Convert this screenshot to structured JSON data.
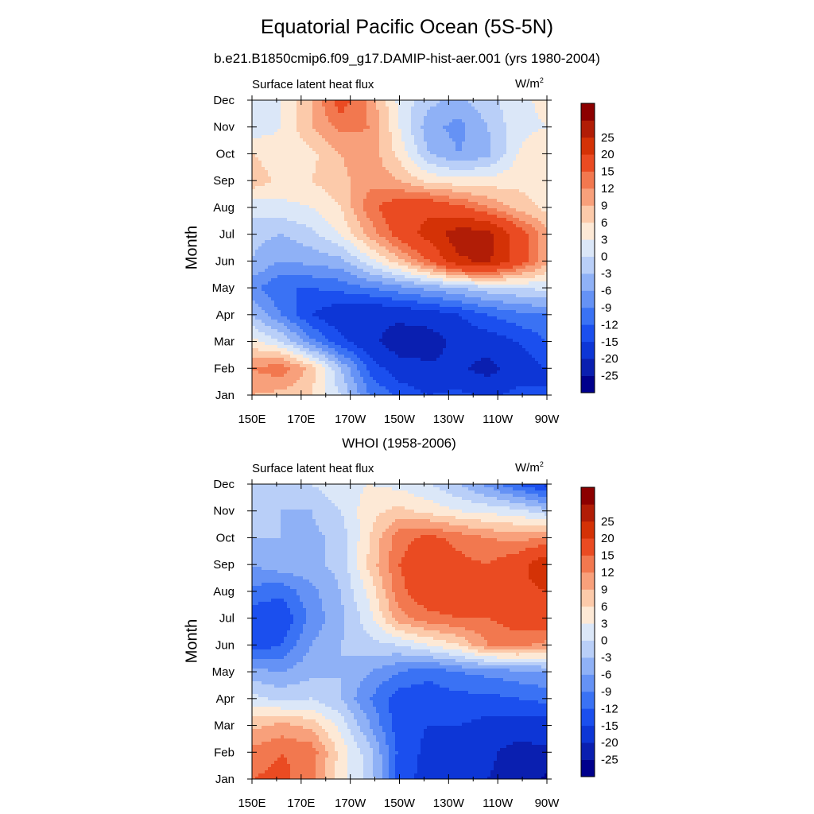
{
  "title": "Equatorial Pacific Ocean (5S-5N)",
  "subtitle": "b.e21.B1850cmip6.f09_g17.DAMIP-hist-aer.001 (yrs 1980-2004)",
  "panels": [
    {
      "panel_title": "",
      "var_label": "Surface latent heat flux",
      "unit_base": "W/m",
      "unit_exp": "2",
      "ylabel": "Month"
    },
    {
      "panel_title": "WHOI (1958-2006)",
      "var_label": "Surface latent heat flux",
      "unit_base": "W/m",
      "unit_exp": "2",
      "ylabel": "Month"
    }
  ],
  "colorbar": {
    "labels": [
      "-25",
      "-20",
      "-15",
      "-12",
      "-9",
      "-6",
      "-3",
      "0",
      "3",
      "6",
      "9",
      "12",
      "15",
      "20",
      "25"
    ],
    "colors": [
      "#00008c",
      "#0a1fb0",
      "#0d36d6",
      "#1b4fee",
      "#3a72f4",
      "#6592f5",
      "#8fb1f6",
      "#b9cff8",
      "#dbe7f8",
      "#fde9d6",
      "#fccaaa",
      "#f8a07b",
      "#f2784f",
      "#ea4b22",
      "#d43206",
      "#b11d06",
      "#8c0000"
    ]
  },
  "chart_data": [
    {
      "type": "heatmap",
      "title": "Equatorial Pacific Ocean (5S-5N)",
      "subtitle": "b.e21.B1850cmip6.f09_g17.DAMIP-hist-aer.001 (yrs 1980-2004)",
      "variable": "Surface latent heat flux",
      "units": "W/m2",
      "ylabel": "Month",
      "x_ticks": [
        "150E",
        "170E",
        "170W",
        "150W",
        "130W",
        "110W",
        "90W"
      ],
      "x_lon": [
        150,
        170,
        190,
        210,
        230,
        250,
        270
      ],
      "y_ticks": [
        "Jan",
        "Feb",
        "Mar",
        "Apr",
        "May",
        "Jun",
        "Jul",
        "Aug",
        "Sep",
        "Oct",
        "Nov",
        "Dec"
      ],
      "contour_levels": [
        -25,
        -20,
        -15,
        -12,
        -9,
        -6,
        -3,
        0,
        3,
        6,
        9,
        12,
        15,
        20,
        25
      ],
      "values": [
        [
          9,
          8,
          6,
          0,
          -9,
          -13,
          -15,
          -14,
          -16,
          -14,
          -15
        ],
        [
          12,
          14,
          8,
          -3,
          -13,
          -17,
          -19,
          -19,
          -22,
          -17,
          -15
        ],
        [
          4,
          0,
          -8,
          -14,
          -18,
          -24,
          -23,
          -18,
          -17,
          -15,
          -12
        ],
        [
          -3,
          -9,
          -15,
          -18,
          -19,
          -18,
          -17,
          -15,
          -12,
          -10,
          -9
        ],
        [
          -8,
          -12,
          -12,
          -11,
          -9,
          -7,
          -5,
          -3,
          -1,
          0,
          1
        ],
        [
          -3,
          -6,
          -5,
          -4,
          2,
          8,
          15,
          24,
          26,
          18,
          10
        ],
        [
          -2,
          -3,
          -1,
          3,
          10,
          17,
          22,
          28,
          27,
          18,
          10
        ],
        [
          1,
          2,
          3,
          6,
          14,
          18,
          19,
          16,
          12,
          8,
          5
        ],
        [
          8,
          5,
          6,
          8,
          11,
          9,
          5,
          4,
          4,
          5,
          4
        ],
        [
          6,
          4,
          5,
          9,
          11,
          5,
          -3,
          -6,
          -4,
          3,
          6
        ],
        [
          1,
          3,
          9,
          13,
          12,
          3,
          -5,
          -7,
          -3,
          2,
          3
        ],
        [
          0,
          3,
          9,
          17,
          11,
          2,
          -2,
          -4,
          -1,
          2,
          4
        ]
      ]
    },
    {
      "type": "heatmap",
      "title": "WHOI (1958-2006)",
      "variable": "Surface latent heat flux",
      "units": "W/m2",
      "ylabel": "Month",
      "x_ticks": [
        "150E",
        "170E",
        "170W",
        "150W",
        "130W",
        "110W",
        "90W"
      ],
      "x_lon": [
        150,
        170,
        190,
        210,
        230,
        250,
        270
      ],
      "y_ticks": [
        "Jan",
        "Feb",
        "Mar",
        "Apr",
        "May",
        "Jun",
        "Jul",
        "Aug",
        "Sep",
        "Oct",
        "Nov",
        "Dec"
      ],
      "contour_levels": [
        -25,
        -20,
        -15,
        -12,
        -9,
        -6,
        -3,
        0,
        3,
        6,
        9,
        12,
        15,
        20,
        25
      ],
      "values": [
        [
          15,
          16,
          13,
          4,
          -1,
          -14,
          -16,
          -17,
          -20,
          -22,
          -26
        ],
        [
          13,
          15,
          14,
          5,
          -2,
          -13,
          -16,
          -18,
          -19,
          -22,
          -21
        ],
        [
          8,
          10,
          8,
          2,
          -6,
          -14,
          -15,
          -15,
          -16,
          -17,
          -17
        ],
        [
          1,
          -1,
          0,
          -3,
          -9,
          -14,
          -14,
          -13,
          -13,
          -12,
          -11
        ],
        [
          -5,
          -6,
          -4,
          -3,
          -6,
          -9,
          -11,
          -9,
          -8,
          -7,
          -6
        ],
        [
          -14,
          -12,
          -6,
          -3,
          -1,
          0,
          3,
          6,
          12,
          13,
          11
        ],
        [
          -14,
          -15,
          -8,
          -4,
          2,
          11,
          14,
          15,
          15,
          17,
          18
        ],
        [
          -10,
          -11,
          -7,
          -3,
          4,
          14,
          18,
          17,
          16,
          19,
          20
        ],
        [
          -6,
          -4,
          -4,
          -2,
          7,
          15,
          18,
          16,
          15,
          18,
          24
        ],
        [
          -3,
          -3,
          -4,
          -2,
          6,
          14,
          16,
          14,
          12,
          11,
          12
        ],
        [
          -2,
          -3,
          -3,
          0,
          5,
          7,
          5,
          3,
          2,
          1,
          -2
        ],
        [
          -1,
          -1,
          0,
          2,
          3,
          2,
          0,
          -3,
          -7,
          -12,
          -16
        ]
      ]
    }
  ]
}
